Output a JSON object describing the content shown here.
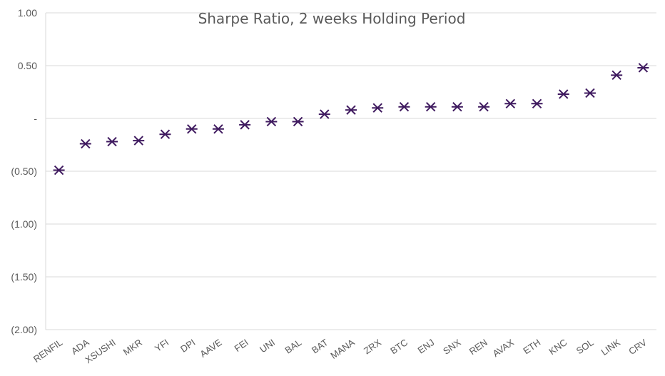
{
  "chart_data": {
    "type": "scatter",
    "title": "Sharpe Ratio, 2 weeks Holding Period",
    "xlabel": "",
    "ylabel": "",
    "ylim": [
      -2.0,
      1.0
    ],
    "grid": true,
    "legend": "none",
    "marker_color": "#3f1a5f",
    "y_tick_values": [
      1.0,
      0.5,
      0,
      -0.5,
      -1.0,
      -1.5,
      -2.0
    ],
    "y_tick_labels": [
      "1.00",
      "0.50",
      "-",
      "(0.50)",
      "(1.00)",
      "(1.50)",
      "(2.00)"
    ],
    "categories": [
      "RENFIL",
      "ADA",
      "XSUSHI",
      "MKR",
      "YFI",
      "DPI",
      "AAVE",
      "FEI",
      "UNI",
      "BAL",
      "BAT",
      "MANA",
      "ZRX",
      "BTC",
      "ENJ",
      "SNX",
      "REN",
      "AVAX",
      "ETH",
      "KNC",
      "SOL",
      "LINK",
      "CRV"
    ],
    "values": [
      -0.49,
      -0.24,
      -0.22,
      -0.21,
      -0.15,
      -0.1,
      -0.1,
      -0.06,
      -0.03,
      -0.03,
      0.04,
      0.08,
      0.1,
      0.11,
      0.11,
      0.11,
      0.11,
      0.14,
      0.14,
      0.23,
      0.24,
      0.41,
      0.48
    ]
  }
}
